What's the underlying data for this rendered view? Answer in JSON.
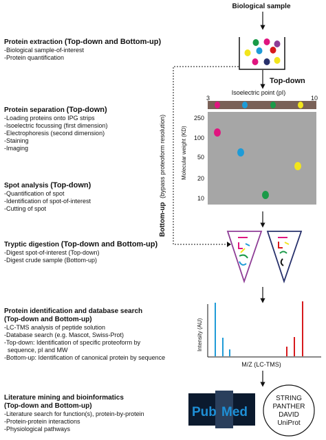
{
  "sections": [
    {
      "title": "Protein extraction",
      "scope": "(Top-down and Bottom-up)",
      "items": [
        "-Biological sample-of-interest",
        "-Protein quantification"
      ]
    },
    {
      "title": "Protein separation",
      "scope": "(Top-down)",
      "items": [
        "-Loading proteins onto IPG strips",
        "-Isoelectric focussing (first dimension)",
        "-Electrophoresis (second dimension)",
        "-Staining",
        "-Imaging"
      ]
    },
    {
      "title": "Spot analysis",
      "scope": "(Top-down)",
      "items": [
        "-Quantification of spot",
        "-Identification of spot-of-interest",
        "-Cutting of spot"
      ]
    },
    {
      "title": "Tryptic digestion",
      "scope": "(Top-down and Bottom-up)",
      "items": [
        "-Digest spot-of-interest (Top-down)",
        "-Digest crude sample (Bottom-up)"
      ]
    },
    {
      "title": "Protein identification and database search",
      "scope": "(Top-down and Bottom-up)",
      "items": [
        "-LC-TMS analysis of peptide solution",
        "-Database search (e.g. Mascot, Swiss-Prot)",
        "-Top-down: Identification of specific proteoform by",
        "  sequence, pI and MW",
        "-Bottom-up: Identification of canonical protein by sequence"
      ]
    },
    {
      "title": "Literature mining and bioinformatics",
      "scope": "(Top-down and Bottom-up)",
      "items": [
        "-Literature search for function(s), protein-by-protein",
        "-Protein-protein interactions",
        "-Physiological pathways"
      ]
    }
  ],
  "diagram": {
    "biological_sample": "Biological sample",
    "top_down": "Top-down",
    "bottom_up": "Bottom-up",
    "bottom_up_note": "(bypass proteoform resolution)",
    "pi_axis": "Isoelectric point (pI)",
    "pi_min": "3",
    "pi_max": "10",
    "mw_axis": "Molecular weight (KD)",
    "mw_ticks": [
      "250",
      "100",
      "50",
      "20",
      "10"
    ],
    "intensity_axis": "Intensity (AU)",
    "mz_axis": "M/Z (LC-TMS)",
    "pubmed_pub": "Pub",
    "pubmed_med": "Med",
    "databases": [
      "STRING",
      "PANTHER",
      "DAVID",
      "UniProt"
    ]
  },
  "colors": {
    "magenta": "#e0157f",
    "blue": "#1e9bd7",
    "green": "#1a9a48",
    "yellow": "#f2e51c",
    "red": "#d7191c",
    "gel": "#a6a6a6",
    "strip": "#7a6157",
    "purple": "#8e3d96",
    "navy": "#27306b"
  }
}
